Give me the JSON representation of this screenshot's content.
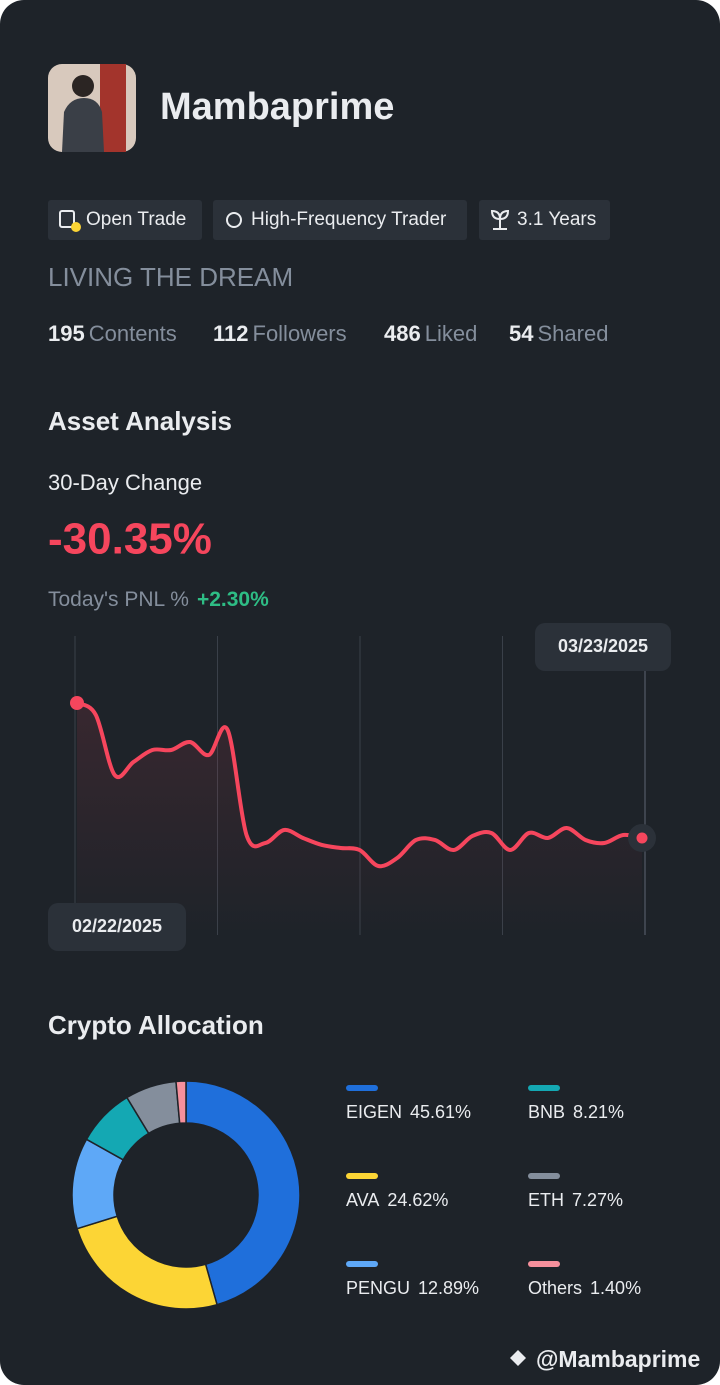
{
  "profile": {
    "name": "Mambaprime",
    "tags": [
      "Open Trade",
      "High-Frequency Trader",
      "3.1 Years"
    ],
    "motto": "LIVING THE DREAM",
    "stats": [
      {
        "value": 195,
        "label": "Contents"
      },
      {
        "value": 112,
        "label": "Followers"
      },
      {
        "value": 486,
        "label": "Liked"
      },
      {
        "value": 54,
        "label": "Shared"
      }
    ]
  },
  "asset_analysis": {
    "title": "Asset Analysis",
    "change_label": "30-Day Change",
    "change": "-30.35%",
    "pnl_label": "Today's PNL %",
    "pnl": "+2.30%"
  },
  "chart_data": [
    {
      "type": "line",
      "color": "#f6465d",
      "categories": [
        "02/22/2025",
        null,
        null,
        null,
        null,
        null,
        null,
        null,
        null,
        null,
        null,
        null,
        null,
        null,
        null,
        null,
        null,
        null,
        null,
        null,
        null,
        null,
        null,
        null,
        null,
        null,
        null,
        null,
        null,
        null,
        "03/23/2025"
      ],
      "values": [
        0,
        -2.7,
        -16.19,
        -13.26,
        -10.57,
        -10.57,
        -8.77,
        -11.69,
        -6.07,
        -29.67,
        -31.47,
        -28.55,
        -30.35,
        -31.92,
        -32.6,
        -33.05,
        -36.65,
        -34.85,
        -30.8,
        -30.8,
        -33.05,
        -29.9,
        -29.22,
        -33.05,
        -29.22,
        -30.35,
        -28.1,
        -30.8,
        -31.47,
        -29.67,
        -30.35
      ]
    },
    {
      "type": "pie",
      "title": "Crypto Allocation",
      "categories": [
        "EIGEN",
        "AVA",
        "PENGU",
        "BNB",
        "ETH",
        "Others"
      ],
      "values": [
        45.61,
        24.62,
        12.89,
        8.21,
        7.27,
        1.4
      ],
      "value_labels": [
        "45.61%",
        "24.62%",
        "12.89%",
        "8.21%",
        "7.27%",
        "1.40%"
      ],
      "colors": [
        "#1f6fdb",
        "#fcd535",
        "#5ea8f7",
        "#14a8b3",
        "#848e9c",
        "#f6909c"
      ]
    }
  ],
  "watermark": "@Mambaprime"
}
